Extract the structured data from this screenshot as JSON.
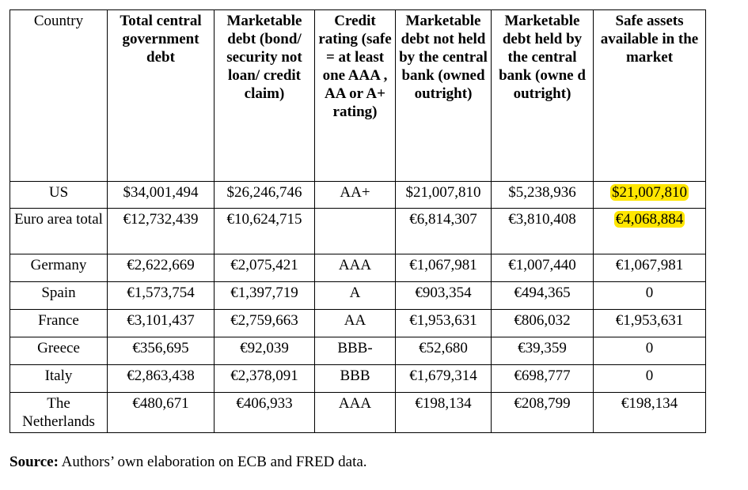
{
  "table": {
    "headers": [
      "Country",
      "Total central government debt",
      "Marketable debt (bond/ security not loan/ credit claim)",
      "Credit rating (safe = at least one AAA , AA or A+ rating)",
      "Marketable debt not held by the central bank (owned outright)",
      "Marketable debt held by the central bank (owne d outright)",
      "Safe assets available in the market"
    ],
    "rows": [
      [
        "US",
        "$34,001,494",
        "$26,246,746",
        "AA+",
        "$21,007,810",
        "$5,238,936",
        "$21,007,810"
      ],
      [
        "Euro area total",
        "€12,732,439",
        "€10,624,715",
        "",
        "€6,814,307",
        "€3,810,408",
        "€4,068,884"
      ],
      [
        "Germany",
        "€2,622,669",
        "€2,075,421",
        "AAA",
        "€1,067,981",
        "€1,007,440",
        "€1,067,981"
      ],
      [
        "Spain",
        "€1,573,754",
        "€1,397,719",
        "A",
        "€903,354",
        "€494,365",
        "0"
      ],
      [
        "France",
        "€3,101,437",
        "€2,759,663",
        "AA",
        "€1,953,631",
        "€806,032",
        "€1,953,631"
      ],
      [
        "Greece",
        "€356,695",
        "€92,039",
        "BBB-",
        "€52,680",
        "€39,359",
        "0"
      ],
      [
        "Italy",
        "€2,863,438",
        "€2,378,091",
        "BBB",
        "€1,679,314",
        "€698,777",
        "0"
      ],
      [
        "The Netherlands",
        "€480,671",
        "€406,933",
        "AAA",
        "€198,134",
        "€208,799",
        "€198,134"
      ]
    ]
  },
  "source": {
    "label": "Source:",
    "text": " Authors’ own elaboration on ECB and FRED data."
  },
  "colors": {
    "highlight": "#ffe600",
    "border": "#000000"
  }
}
